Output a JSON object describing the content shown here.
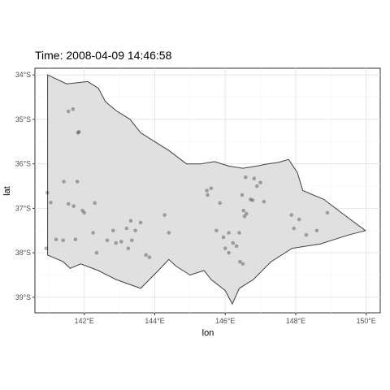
{
  "chart_data": {
    "type": "scatter",
    "title": "Time: 2008-04-09 14:46:58",
    "xlabel": "lon",
    "ylabel": "lat",
    "xlim": [
      140.6,
      150.4
    ],
    "ylim": [
      -39.35,
      -33.85
    ],
    "x_ticks": [
      142,
      144,
      146,
      148,
      150
    ],
    "x_tick_labels": [
      "142°E",
      "144°E",
      "146°E",
      "148°E",
      "150°E"
    ],
    "y_ticks": [
      -34,
      -35,
      -36,
      -37,
      -38,
      -39
    ],
    "y_tick_labels": [
      "34°S",
      "35°S",
      "36°S",
      "37°S",
      "38°S",
      "39°S"
    ],
    "grid": true,
    "legend": "none",
    "region_fill_color": "#e0e0e0",
    "region_stroke_color": "#404040",
    "point_color": "#000000",
    "point_opacity": 0.3,
    "region_outline": [
      [
        140.96,
        -34.0
      ],
      [
        141.5,
        -34.2
      ],
      [
        142.1,
        -34.15
      ],
      [
        142.4,
        -34.3
      ],
      [
        142.6,
        -34.6
      ],
      [
        142.9,
        -34.8
      ],
      [
        143.3,
        -35.0
      ],
      [
        143.6,
        -35.3
      ],
      [
        144.0,
        -35.5
      ],
      [
        144.4,
        -35.7
      ],
      [
        144.9,
        -36.0
      ],
      [
        145.3,
        -36.0
      ],
      [
        145.7,
        -35.95
      ],
      [
        146.1,
        -36.05
      ],
      [
        146.5,
        -36.1
      ],
      [
        146.9,
        -36.05
      ],
      [
        147.2,
        -36.0
      ],
      [
        147.5,
        -35.97
      ],
      [
        147.8,
        -35.9
      ],
      [
        148.05,
        -36.2
      ],
      [
        148.2,
        -36.6
      ],
      [
        148.8,
        -36.8
      ],
      [
        149.3,
        -37.1
      ],
      [
        149.98,
        -37.5
      ],
      [
        149.5,
        -37.6
      ],
      [
        148.7,
        -37.8
      ],
      [
        147.9,
        -37.9
      ],
      [
        147.3,
        -38.2
      ],
      [
        146.8,
        -38.6
      ],
      [
        146.4,
        -38.8
      ],
      [
        146.2,
        -39.15
      ],
      [
        146.0,
        -38.85
      ],
      [
        145.6,
        -38.6
      ],
      [
        145.4,
        -38.4
      ],
      [
        145.0,
        -38.5
      ],
      [
        144.6,
        -38.3
      ],
      [
        144.4,
        -38.15
      ],
      [
        144.1,
        -38.4
      ],
      [
        143.6,
        -38.8
      ],
      [
        142.9,
        -38.6
      ],
      [
        142.4,
        -38.4
      ],
      [
        141.9,
        -38.25
      ],
      [
        141.6,
        -38.35
      ],
      [
        141.4,
        -38.2
      ],
      [
        140.96,
        -38.05
      ],
      [
        140.96,
        -34.0
      ]
    ],
    "points": [
      {
        "x": 140.95,
        "y": -36.65
      },
      {
        "x": 141.05,
        "y": -36.87
      },
      {
        "x": 140.92,
        "y": -37.9
      },
      {
        "x": 141.42,
        "y": -36.4
      },
      {
        "x": 141.55,
        "y": -34.82
      },
      {
        "x": 141.68,
        "y": -34.77
      },
      {
        "x": 141.82,
        "y": -35.3
      },
      {
        "x": 141.85,
        "y": -35.28
      },
      {
        "x": 141.8,
        "y": -36.4
      },
      {
        "x": 141.55,
        "y": -36.9
      },
      {
        "x": 141.7,
        "y": -36.95
      },
      {
        "x": 141.95,
        "y": -37.05
      },
      {
        "x": 142.0,
        "y": -37.1
      },
      {
        "x": 142.3,
        "y": -36.88
      },
      {
        "x": 141.4,
        "y": -37.72
      },
      {
        "x": 141.2,
        "y": -37.7
      },
      {
        "x": 141.75,
        "y": -37.7
      },
      {
        "x": 142.25,
        "y": -37.55
      },
      {
        "x": 142.35,
        "y": -38.0
      },
      {
        "x": 142.65,
        "y": -37.72
      },
      {
        "x": 142.82,
        "y": -37.5
      },
      {
        "x": 142.9,
        "y": -37.78
      },
      {
        "x": 143.05,
        "y": -37.75
      },
      {
        "x": 143.2,
        "y": -37.45
      },
      {
        "x": 143.32,
        "y": -37.28
      },
      {
        "x": 143.45,
        "y": -37.5
      },
      {
        "x": 143.6,
        "y": -37.32
      },
      {
        "x": 143.35,
        "y": -37.72
      },
      {
        "x": 143.25,
        "y": -37.9
      },
      {
        "x": 143.75,
        "y": -38.05
      },
      {
        "x": 143.85,
        "y": -38.1
      },
      {
        "x": 144.28,
        "y": -37.15
      },
      {
        "x": 144.4,
        "y": -37.55
      },
      {
        "x": 145.48,
        "y": -36.6
      },
      {
        "x": 145.6,
        "y": -36.55
      },
      {
        "x": 145.5,
        "y": -36.7
      },
      {
        "x": 145.85,
        "y": -36.88
      },
      {
        "x": 145.75,
        "y": -37.5
      },
      {
        "x": 145.95,
        "y": -37.65
      },
      {
        "x": 146.1,
        "y": -37.55
      },
      {
        "x": 146.22,
        "y": -37.78
      },
      {
        "x": 146.4,
        "y": -37.55
      },
      {
        "x": 146.32,
        "y": -37.85
      },
      {
        "x": 146.48,
        "y": -36.7
      },
      {
        "x": 146.52,
        "y": -37.05
      },
      {
        "x": 146.6,
        "y": -37.12
      },
      {
        "x": 146.55,
        "y": -37.18
      },
      {
        "x": 146.72,
        "y": -36.8
      },
      {
        "x": 146.78,
        "y": -36.82
      },
      {
        "x": 146.9,
        "y": -36.5
      },
      {
        "x": 147.0,
        "y": -36.42
      },
      {
        "x": 147.1,
        "y": -36.85
      },
      {
        "x": 146.82,
        "y": -36.33
      },
      {
        "x": 146.58,
        "y": -36.3
      },
      {
        "x": 146.0,
        "y": -37.9
      },
      {
        "x": 146.1,
        "y": -38.0
      },
      {
        "x": 146.42,
        "y": -38.2
      },
      {
        "x": 146.5,
        "y": -38.25
      },
      {
        "x": 147.88,
        "y": -37.15
      },
      {
        "x": 148.1,
        "y": -37.25
      },
      {
        "x": 147.95,
        "y": -37.45
      },
      {
        "x": 148.6,
        "y": -37.5
      },
      {
        "x": 148.9,
        "y": -37.1
      },
      {
        "x": 148.3,
        "y": -37.6
      }
    ]
  }
}
